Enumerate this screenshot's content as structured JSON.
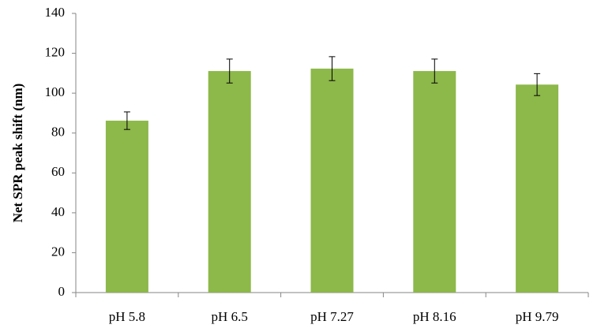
{
  "chart_data": {
    "type": "bar",
    "y_label": "Net SPR peak shift  (nm)",
    "categories": [
      "pH 5.8",
      "pH 6.5",
      "pH 7.27",
      "pH 8.16",
      "pH 9.79"
    ],
    "values": [
      86.2,
      111.1,
      112.3,
      111.1,
      104.3
    ],
    "errors": [
      4.4,
      6,
      6,
      6,
      5.5
    ],
    "color": "#8db84a",
    "ylim": [
      0,
      140
    ],
    "yticks": [
      0,
      20,
      40,
      60,
      80,
      100,
      120,
      140
    ],
    "grid": false
  }
}
